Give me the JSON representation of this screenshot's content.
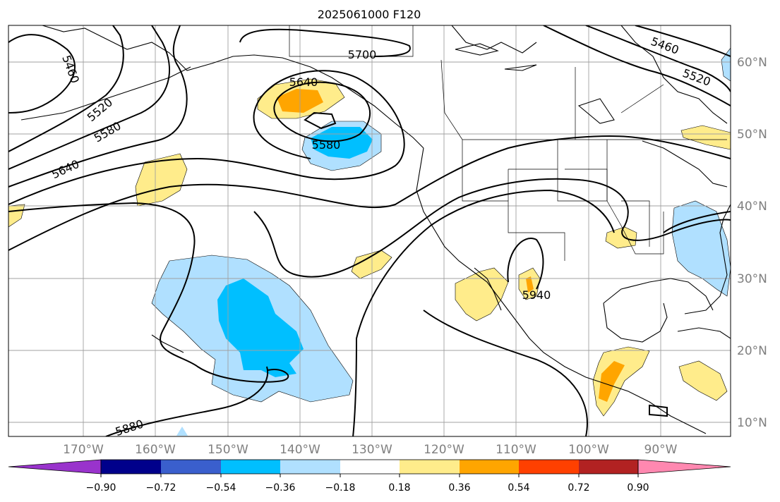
{
  "map": {
    "title": "2025061000 F120",
    "lon_ticks": [
      "170°W",
      "160°W",
      "150°W",
      "140°W",
      "130°W",
      "120°W",
      "110°W",
      "100°W",
      "90°W"
    ],
    "lat_ticks": [
      "60°N",
      "50°N",
      "40°N",
      "30°N",
      "20°N",
      "10°N"
    ],
    "contour_labels": [
      "5460",
      "5520",
      "5580",
      "5640",
      "5700",
      "5640",
      "5580",
      "5460",
      "5520",
      "5880",
      "5940"
    ]
  },
  "colorbar": {
    "tick_labels": [
      "−0.90",
      "−0.72",
      "−0.54",
      "−0.36",
      "−0.18",
      "0.18",
      "0.36",
      "0.54",
      "0.72",
      "0.90"
    ],
    "colors": [
      "#9933cc",
      "#00008b",
      "#3a5fcd",
      "#00bfff",
      "#b0e0ff",
      "#ffffff",
      "#ffec8b",
      "#ffa500",
      "#ff4000",
      "#b22222",
      "#ff88b0"
    ]
  },
  "colors": {
    "light_blue": "#b0e0ff",
    "blue": "#00bfff",
    "light_yellow": "#ffec8b",
    "orange": "#ffa500",
    "grid": "#a0a0a0",
    "coast": "#000000"
  }
}
